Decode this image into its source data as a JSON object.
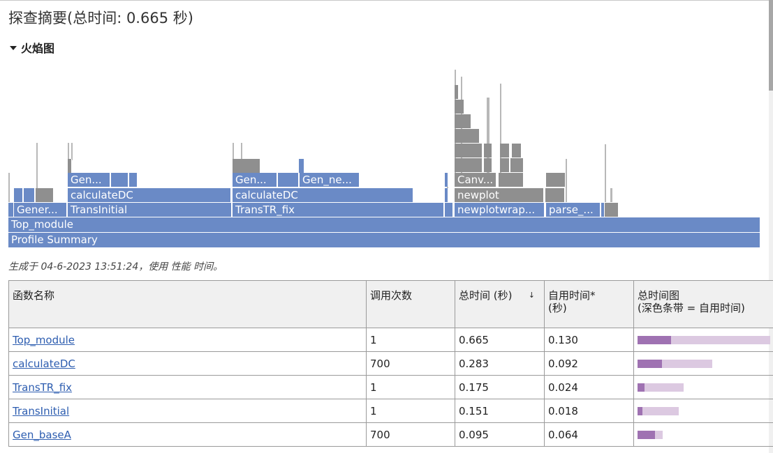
{
  "page": {
    "title": "探查摘要(总时间: 0.665 秒)",
    "flame_section_label": "火焰图",
    "generated_note": "生成于 04-6-2023 13:51:24，使用 性能 时间。"
  },
  "flame": {
    "labels": {
      "profile_summary": "Profile Summary",
      "top_module": "Top_module",
      "gener": "Gener...",
      "transinitial": "TransInitial",
      "calculatedc_a": "calculateDC",
      "gen_a": "Gen...",
      "transtr_fix": "TransTR_fix",
      "calculatedc_b": "calculateDC",
      "gen_b": "Gen...",
      "gen_ne": "Gen_ne...",
      "newplotwrap": "newplotwrap...",
      "newplot": "newplot",
      "canv": "Canv...",
      "parse": "parse_..."
    },
    "colors": {
      "frame": "#6a8ac6",
      "other": "#8f8f8f"
    }
  },
  "table": {
    "headers": {
      "name": "函数名称",
      "calls": "调用次数",
      "total": "总时间 (秒)",
      "self_line1": "自用时间*",
      "self_line2": "(秒)",
      "plot_line1": "总时间图",
      "plot_line2": "(深色条带 = 自用时间)"
    },
    "sort_indicator": "↓",
    "colors": {
      "total_bar": "#dcc9e1",
      "self_bar": "#9f72b2"
    },
    "rows": [
      {
        "name": "Top_module",
        "calls": "1",
        "total": "0.665",
        "self": "0.130"
      },
      {
        "name": "calculateDC",
        "calls": "700",
        "total": "0.283",
        "self": "0.092"
      },
      {
        "name": "TransTR_fix",
        "calls": "1",
        "total": "0.175",
        "self": "0.024"
      },
      {
        "name": "TransInitial",
        "calls": "1",
        "total": "0.151",
        "self": "0.018"
      },
      {
        "name": "Gen_baseA",
        "calls": "700",
        "total": "0.095",
        "self": "0.064"
      }
    ]
  }
}
